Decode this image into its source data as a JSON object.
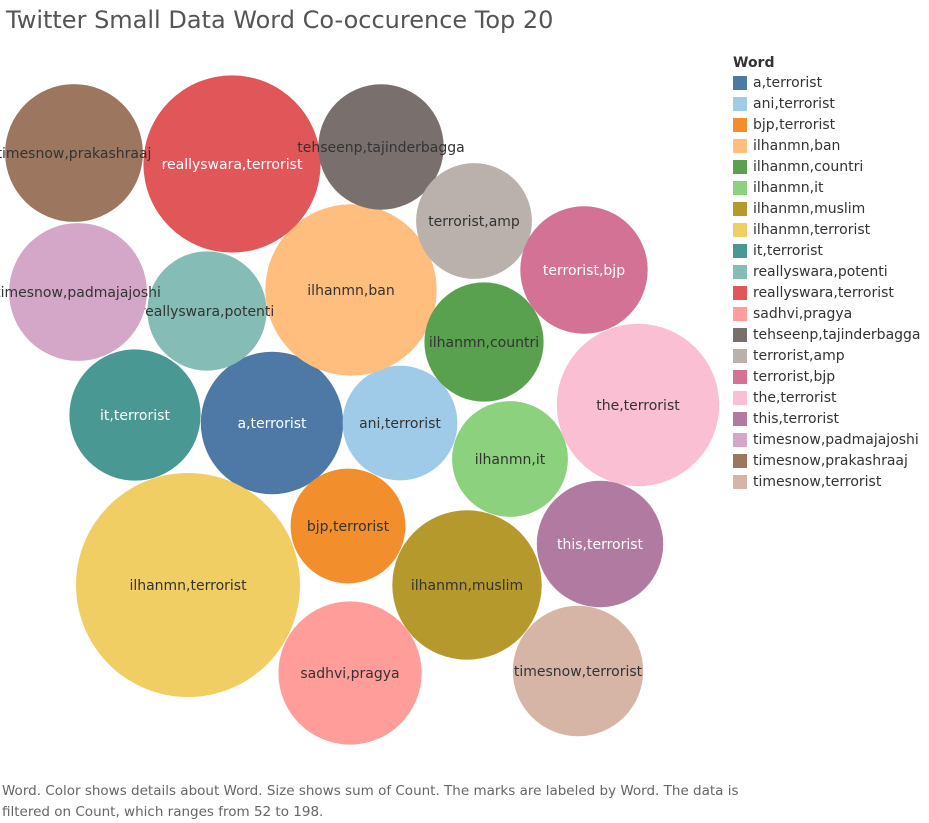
{
  "title": "Twitter Small Data Word Co-occurence Top 20",
  "legend": {
    "title": "Word",
    "placement": "right"
  },
  "caption": "Word.  Color shows details about Word.  Size shows sum of Count.  The marks are labeled by Word. The data is filtered on Count, which ranges from 52 to 198.",
  "chart_data": {
    "type": "packed-bubble",
    "title": "Twitter Small Data Word Co-occurence Top 20",
    "size_measure": "sum of Count",
    "color_dimension": "Word",
    "count_range": [
      52,
      198
    ],
    "items": [
      {
        "word": "a,terrorist",
        "count": 80,
        "color": "#4e79a7",
        "label_color": "#ffffff"
      },
      {
        "word": "ani,terrorist",
        "count": 52,
        "color": "#a0cbe8",
        "label_color": "#333333"
      },
      {
        "word": "bjp,terrorist",
        "count": 52,
        "color": "#f28e2b",
        "label_color": "#333333"
      },
      {
        "word": "ilhanmn,ban",
        "count": 116,
        "color": "#ffbe7d",
        "label_color": "#333333"
      },
      {
        "word": "ilhanmn,countri",
        "count": 56,
        "color": "#59a14f",
        "label_color": "#333333"
      },
      {
        "word": "ilhanmn,it",
        "count": 53,
        "color": "#8cd17d",
        "label_color": "#333333"
      },
      {
        "word": "ilhanmn,muslim",
        "count": 88,
        "color": "#b6992d",
        "label_color": "#333333"
      },
      {
        "word": "ilhanmn,terrorist",
        "count": 198,
        "color": "#f1ce63",
        "label_color": "#333333"
      },
      {
        "word": "it,terrorist",
        "count": 68,
        "color": "#499894",
        "label_color": "#ffffff"
      },
      {
        "word": "reallyswara,potenti",
        "count": 56,
        "color": "#86bcb6",
        "label_color": "#333333"
      },
      {
        "word": "reallyswara,terrorist",
        "count": 124,
        "color": "#e15759",
        "label_color": "#ffffff"
      },
      {
        "word": "sadhvi,pragya",
        "count": 81,
        "color": "#ff9d9a",
        "label_color": "#333333"
      },
      {
        "word": "tehseenp,tajinderbagga",
        "count": 62,
        "color": "#79706e",
        "label_color": "#333333"
      },
      {
        "word": "terrorist,amp",
        "count": 53,
        "color": "#bab0ac",
        "label_color": "#333333"
      },
      {
        "word": "terrorist,bjp",
        "count": 64,
        "color": "#d37295",
        "label_color": "#ffffff"
      },
      {
        "word": "the,terrorist",
        "count": 104,
        "color": "#fabfd2",
        "label_color": "#333333"
      },
      {
        "word": "this,terrorist",
        "count": 63,
        "color": "#b07aa1",
        "label_color": "#ffffff"
      },
      {
        "word": "timesnow,padmajajoshi",
        "count": 75,
        "color": "#d4a6c8",
        "label_color": "#333333"
      },
      {
        "word": "timesnow,prakashraaj",
        "count": 75,
        "color": "#9d7660",
        "label_color": "#333333"
      },
      {
        "word": "timesnow,terrorist",
        "count": 67,
        "color": "#d7b5a6",
        "label_color": "#333333"
      }
    ]
  }
}
